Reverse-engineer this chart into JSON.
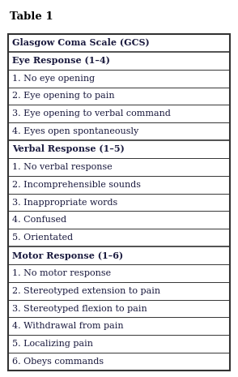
{
  "title": "Table 1",
  "rows": [
    {
      "text": "Glasgow Coma Scale (GCS)",
      "bold": true
    },
    {
      "text": "Eye Response (1–4)",
      "bold": true
    },
    {
      "text": "1. No eye opening",
      "bold": false
    },
    {
      "text": "2. Eye opening to pain",
      "bold": false
    },
    {
      "text": "3. Eye opening to verbal command",
      "bold": false
    },
    {
      "text": "4. Eyes open spontaneously",
      "bold": false
    },
    {
      "text": "Verbal Response (1–5)",
      "bold": true
    },
    {
      "text": "1. No verbal response",
      "bold": false
    },
    {
      "text": "2. Incomprehensible sounds",
      "bold": false
    },
    {
      "text": "3. Inappropriate words",
      "bold": false
    },
    {
      "text": "4. Confused",
      "bold": false
    },
    {
      "text": "5. Orientated",
      "bold": false
    },
    {
      "text": "Motor Response (1–6)",
      "bold": true
    },
    {
      "text": "1. No motor response",
      "bold": false
    },
    {
      "text": "2. Stereotyped extension to pain",
      "bold": false
    },
    {
      "text": "3. Stereotyped flexion to pain",
      "bold": false
    },
    {
      "text": "4. Withdrawal from pain",
      "bold": false
    },
    {
      "text": "5. Localizing pain",
      "bold": false
    },
    {
      "text": "6. Obeys commands",
      "bold": false
    }
  ],
  "bg_color": "#ffffff",
  "text_color": "#1a1a3e",
  "border_color": "#333333",
  "title_fontsize": 9.5,
  "row_fontsize": 8.0,
  "fig_width": 2.94,
  "fig_height": 4.65,
  "dpi": 100
}
